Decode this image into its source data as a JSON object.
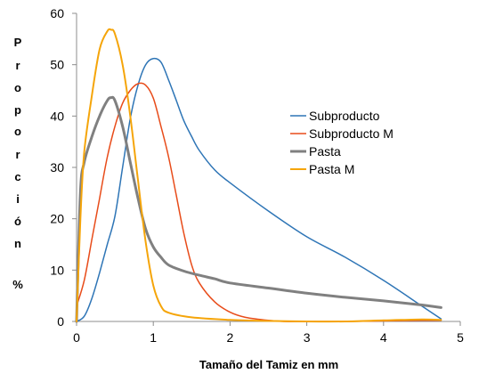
{
  "chart_data": {
    "type": "line",
    "title": "",
    "xlabel": "Tamaño del Tamiz en mm",
    "ylabel_letters": [
      "P",
      "r",
      "o",
      "p",
      "o",
      "r",
      "c",
      "i",
      "ó",
      "n",
      "%"
    ],
    "xlim": [
      0,
      5
    ],
    "ylim": [
      0,
      60
    ],
    "xticks": [
      0,
      1,
      2,
      3,
      4,
      5
    ],
    "yticks": [
      0,
      10,
      20,
      30,
      40,
      50,
      60
    ],
    "grid": false,
    "legend_position": "right",
    "series": [
      {
        "name": "Subproducto",
        "color": "#2E75B6",
        "width": 1.5,
        "points": [
          [
            0.0,
            0.0
          ],
          [
            0.1,
            1.0
          ],
          [
            0.2,
            4.5
          ],
          [
            0.3,
            9.5
          ],
          [
            0.4,
            15.0
          ],
          [
            0.5,
            20.5
          ],
          [
            0.6,
            30.0
          ],
          [
            0.7,
            39.5
          ],
          [
            0.8,
            46.0
          ],
          [
            0.9,
            50.0
          ],
          [
            1.0,
            51.2
          ],
          [
            1.1,
            50.5
          ],
          [
            1.2,
            47.0
          ],
          [
            1.3,
            43.0
          ],
          [
            1.4,
            39.0
          ],
          [
            1.5,
            36.0
          ],
          [
            1.6,
            33.3
          ],
          [
            1.8,
            29.5
          ],
          [
            2.0,
            27.0
          ],
          [
            2.5,
            21.5
          ],
          [
            3.0,
            16.5
          ],
          [
            3.5,
            12.5
          ],
          [
            4.0,
            8.0
          ],
          [
            4.5,
            3.0
          ],
          [
            4.75,
            0.5
          ]
        ]
      },
      {
        "name": "Subproducto M",
        "color": "#E84C1A",
        "width": 1.5,
        "points": [
          [
            0.0,
            3.0
          ],
          [
            0.1,
            8.0
          ],
          [
            0.2,
            16.0
          ],
          [
            0.3,
            24.0
          ],
          [
            0.4,
            32.0
          ],
          [
            0.5,
            38.0
          ],
          [
            0.6,
            42.5
          ],
          [
            0.7,
            45.0
          ],
          [
            0.8,
            46.3
          ],
          [
            0.9,
            46.0
          ],
          [
            1.0,
            43.5
          ],
          [
            1.1,
            38.0
          ],
          [
            1.2,
            32.0
          ],
          [
            1.3,
            24.5
          ],
          [
            1.4,
            17.0
          ],
          [
            1.5,
            11.0
          ],
          [
            1.6,
            7.5
          ],
          [
            1.8,
            3.8
          ],
          [
            2.0,
            1.8
          ],
          [
            2.2,
            0.8
          ],
          [
            2.5,
            0.2
          ],
          [
            2.7,
            0.0
          ],
          [
            3.0,
            0.0
          ],
          [
            3.5,
            0.0
          ],
          [
            4.0,
            0.1
          ],
          [
            4.5,
            0.2
          ],
          [
            4.75,
            0.2
          ]
        ]
      },
      {
        "name": "Pasta",
        "color": "#808080",
        "width": 3,
        "points": [
          [
            0.0,
            0.0
          ],
          [
            0.05,
            25.0
          ],
          [
            0.1,
            31.0
          ],
          [
            0.2,
            36.0
          ],
          [
            0.3,
            40.0
          ],
          [
            0.4,
            43.0
          ],
          [
            0.45,
            43.6
          ],
          [
            0.5,
            43.0
          ],
          [
            0.6,
            38.0
          ],
          [
            0.7,
            31.0
          ],
          [
            0.8,
            24.0
          ],
          [
            0.9,
            18.0
          ],
          [
            1.0,
            14.5
          ],
          [
            1.1,
            12.5
          ],
          [
            1.2,
            11.0
          ],
          [
            1.4,
            9.8
          ],
          [
            1.6,
            9.0
          ],
          [
            1.8,
            8.3
          ],
          [
            2.0,
            7.5
          ],
          [
            2.5,
            6.5
          ],
          [
            3.0,
            5.5
          ],
          [
            3.5,
            4.7
          ],
          [
            4.0,
            4.0
          ],
          [
            4.5,
            3.2
          ],
          [
            4.75,
            2.7
          ]
        ]
      },
      {
        "name": "Pasta M",
        "color": "#F5A50A",
        "width": 2,
        "points": [
          [
            0.0,
            0.0
          ],
          [
            0.05,
            20.0
          ],
          [
            0.1,
            33.0
          ],
          [
            0.2,
            44.0
          ],
          [
            0.3,
            53.0
          ],
          [
            0.4,
            56.5
          ],
          [
            0.45,
            56.8
          ],
          [
            0.5,
            56.0
          ],
          [
            0.6,
            50.0
          ],
          [
            0.7,
            40.0
          ],
          [
            0.8,
            27.5
          ],
          [
            0.9,
            15.5
          ],
          [
            1.0,
            7.0
          ],
          [
            1.1,
            3.0
          ],
          [
            1.2,
            1.7
          ],
          [
            1.5,
            0.8
          ],
          [
            2.0,
            0.3
          ],
          [
            2.5,
            0.1
          ],
          [
            3.0,
            0.0
          ],
          [
            3.5,
            0.0
          ],
          [
            4.0,
            0.2
          ],
          [
            4.5,
            0.4
          ],
          [
            4.75,
            0.3
          ]
        ]
      }
    ]
  }
}
